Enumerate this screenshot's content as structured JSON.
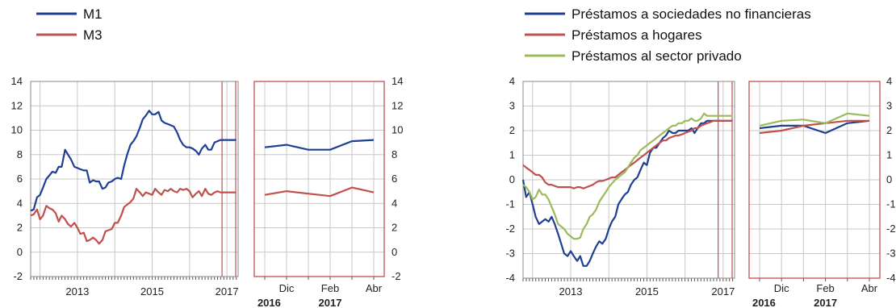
{
  "colors": {
    "m1": "#1f3f93",
    "m3": "#c0504d",
    "nfc": "#1f3f93",
    "households": "#c0504d",
    "private": "#9bbb59",
    "frame": "#c0504d",
    "grid": "#c8c8c8"
  },
  "chart_data": [
    {
      "type": "line",
      "title": "",
      "legend": [
        "M1",
        "M3"
      ],
      "legend_placement": "top-left",
      "ylim": [
        -2,
        14
      ],
      "yticks": [
        -2,
        0,
        2,
        4,
        6,
        8,
        10,
        12,
        14
      ],
      "main": {
        "x_range": [
          2011.75,
          2017.3
        ],
        "year_labels": [
          "2013",
          "2015",
          "2017"
        ],
        "highlight_x": [
          2016.87,
          2017.3
        ],
        "series": [
          {
            "name": "M1",
            "x": [
              2011.75,
              2011.83,
              2011.92,
              2012.0,
              2012.08,
              2012.17,
              2012.25,
              2012.33,
              2012.42,
              2012.5,
              2012.58,
              2012.67,
              2012.75,
              2012.83,
              2012.92,
              2013.0,
              2013.08,
              2013.17,
              2013.25,
              2013.33,
              2013.42,
              2013.5,
              2013.58,
              2013.67,
              2013.75,
              2013.83,
              2013.92,
              2014.0,
              2014.08,
              2014.17,
              2014.25,
              2014.33,
              2014.42,
              2014.5,
              2014.58,
              2014.67,
              2014.75,
              2014.83,
              2014.92,
              2015.0,
              2015.08,
              2015.17,
              2015.25,
              2015.33,
              2015.42,
              2015.5,
              2015.58,
              2015.67,
              2015.75,
              2015.83,
              2015.92,
              2016.0,
              2016.08,
              2016.17,
              2016.25,
              2016.33,
              2016.42,
              2016.5,
              2016.58,
              2016.67,
              2016.75,
              2016.83,
              2016.92,
              2017.0,
              2017.08,
              2017.17,
              2017.25
            ],
            "y": [
              3.4,
              3.5,
              4.5,
              4.7,
              5.3,
              6.0,
              6.3,
              6.6,
              6.5,
              7.0,
              7.0,
              8.4,
              8.0,
              7.6,
              7.0,
              6.9,
              6.8,
              6.7,
              6.7,
              5.7,
              5.9,
              5.8,
              5.8,
              5.2,
              5.3,
              5.7,
              5.8,
              6.0,
              6.1,
              6.0,
              7.1,
              8.0,
              8.8,
              9.1,
              9.5,
              10.2,
              10.9,
              11.2,
              11.6,
              11.3,
              11.3,
              11.5,
              10.8,
              10.6,
              10.5,
              10.4,
              10.3,
              9.8,
              9.2,
              8.8,
              8.6,
              8.6,
              8.5,
              8.3,
              8.0,
              8.5,
              8.8,
              8.4,
              8.4,
              9.0,
              9.1,
              9.2,
              9.2,
              9.2,
              9.2,
              9.2,
              9.2
            ]
          },
          {
            "name": "M3",
            "x": [
              2011.75,
              2011.83,
              2011.92,
              2012.0,
              2012.08,
              2012.17,
              2012.25,
              2012.33,
              2012.42,
              2012.5,
              2012.58,
              2012.67,
              2012.75,
              2012.83,
              2012.92,
              2013.0,
              2013.08,
              2013.17,
              2013.25,
              2013.33,
              2013.42,
              2013.5,
              2013.58,
              2013.67,
              2013.75,
              2013.83,
              2013.92,
              2014.0,
              2014.08,
              2014.17,
              2014.25,
              2014.33,
              2014.42,
              2014.5,
              2014.58,
              2014.67,
              2014.75,
              2014.83,
              2014.92,
              2015.0,
              2015.08,
              2015.17,
              2015.25,
              2015.33,
              2015.42,
              2015.5,
              2015.58,
              2015.67,
              2015.75,
              2015.83,
              2015.92,
              2016.0,
              2016.08,
              2016.17,
              2016.25,
              2016.33,
              2016.42,
              2016.5,
              2016.58,
              2016.67,
              2016.75,
              2016.83,
              2016.92,
              2017.0,
              2017.08,
              2017.17,
              2017.25
            ],
            "y": [
              3.0,
              3.1,
              3.5,
              2.7,
              3.0,
              3.8,
              3.6,
              3.5,
              3.2,
              2.5,
              3.0,
              2.7,
              2.3,
              2.1,
              2.4,
              2.0,
              1.5,
              1.6,
              0.9,
              1.0,
              1.2,
              1.0,
              0.7,
              1.0,
              1.7,
              1.8,
              1.9,
              2.4,
              2.4,
              3.0,
              3.7,
              3.9,
              4.1,
              4.4,
              5.2,
              4.9,
              4.6,
              4.9,
              4.8,
              4.7,
              5.2,
              4.9,
              4.7,
              5.1,
              5.0,
              5.2,
              5.0,
              4.9,
              5.2,
              5.1,
              5.2,
              5.0,
              4.5,
              4.8,
              5.0,
              4.6,
              5.2,
              4.8,
              4.7,
              4.9,
              5.0,
              4.9,
              4.9,
              4.9,
              4.9,
              4.9,
              4.9
            ]
          }
        ]
      },
      "inset": {
        "x_labels": [
          "Dic",
          "Feb",
          "Abr"
        ],
        "year_labels": [
          "2016",
          "2017"
        ],
        "series": [
          {
            "name": "M1",
            "values": [
              8.6,
              8.8,
              8.4,
              8.4,
              9.1,
              9.2
            ]
          },
          {
            "name": "M3",
            "values": [
              4.7,
              5.0,
              4.8,
              4.6,
              5.3,
              4.9
            ]
          }
        ]
      }
    },
    {
      "type": "line",
      "title": "",
      "legend": [
        "Préstamos a sociedades no financieras",
        "Préstamos a hogares",
        "Préstamos al sector privado"
      ],
      "legend_placement": "top-left",
      "ylim": [
        -4,
        4
      ],
      "yticks": [
        -4,
        -3,
        -2,
        -1,
        0,
        1,
        2,
        3,
        4
      ],
      "main": {
        "x_range": [
          2011.75,
          2017.3
        ],
        "year_labels": [
          "2013",
          "2015",
          "2017"
        ],
        "highlight_x": [
          2016.87,
          2017.3
        ],
        "series": [
          {
            "name": "Préstamos a sociedades no financieras",
            "x": [
              2011.75,
              2011.83,
              2011.92,
              2012.0,
              2012.08,
              2012.17,
              2012.25,
              2012.33,
              2012.42,
              2012.5,
              2012.58,
              2012.67,
              2012.75,
              2012.83,
              2012.92,
              2013.0,
              2013.08,
              2013.17,
              2013.25,
              2013.33,
              2013.42,
              2013.5,
              2013.58,
              2013.67,
              2013.75,
              2013.83,
              2013.92,
              2014.0,
              2014.08,
              2014.17,
              2014.25,
              2014.33,
              2014.42,
              2014.5,
              2014.58,
              2014.67,
              2014.75,
              2014.83,
              2014.92,
              2015.0,
              2015.08,
              2015.17,
              2015.25,
              2015.33,
              2015.42,
              2015.5,
              2015.58,
              2015.67,
              2015.75,
              2015.83,
              2015.92,
              2016.0,
              2016.08,
              2016.17,
              2016.25,
              2016.33,
              2016.42,
              2016.5,
              2016.58,
              2016.67,
              2016.75,
              2016.83,
              2016.92,
              2017.0,
              2017.08,
              2017.17,
              2017.25
            ],
            "y": [
              0.0,
              -0.7,
              -0.5,
              -1.0,
              -1.5,
              -1.8,
              -1.7,
              -1.6,
              -1.7,
              -1.5,
              -1.8,
              -2.2,
              -2.6,
              -3.0,
              -3.1,
              -2.9,
              -3.1,
              -3.3,
              -3.1,
              -3.5,
              -3.5,
              -3.3,
              -3.0,
              -2.7,
              -2.5,
              -2.6,
              -2.4,
              -2.0,
              -1.7,
              -1.5,
              -1.0,
              -0.8,
              -0.6,
              -0.5,
              -0.2,
              0.0,
              0.1,
              0.4,
              0.7,
              0.6,
              1.1,
              1.3,
              1.3,
              1.5,
              1.7,
              1.8,
              2.0,
              1.9,
              1.9,
              2.0,
              2.0,
              2.0,
              2.0,
              2.1,
              1.9,
              2.1,
              2.3,
              2.3,
              2.4,
              2.4,
              2.4,
              2.4,
              2.4,
              2.4,
              2.4,
              2.4,
              2.4
            ]
          },
          {
            "name": "Préstamos a hogares",
            "x": [
              2011.75,
              2011.83,
              2011.92,
              2012.0,
              2012.08,
              2012.17,
              2012.25,
              2012.33,
              2012.42,
              2012.5,
              2012.58,
              2012.67,
              2012.75,
              2012.83,
              2012.92,
              2013.0,
              2013.08,
              2013.17,
              2013.25,
              2013.33,
              2013.42,
              2013.5,
              2013.58,
              2013.67,
              2013.75,
              2013.83,
              2013.92,
              2014.0,
              2014.08,
              2014.17,
              2014.25,
              2014.33,
              2014.42,
              2014.5,
              2014.58,
              2014.67,
              2014.75,
              2014.83,
              2014.92,
              2015.0,
              2015.08,
              2015.17,
              2015.25,
              2015.33,
              2015.42,
              2015.5,
              2015.58,
              2015.67,
              2015.75,
              2015.83,
              2015.92,
              2016.0,
              2016.08,
              2016.17,
              2016.25,
              2016.33,
              2016.42,
              2016.5,
              2016.58,
              2016.67,
              2016.75,
              2016.83,
              2016.92,
              2017.0,
              2017.08,
              2017.17,
              2017.25
            ],
            "y": [
              0.6,
              0.5,
              0.4,
              0.3,
              0.2,
              0.2,
              0.1,
              -0.1,
              -0.2,
              -0.2,
              -0.25,
              -0.3,
              -0.3,
              -0.3,
              -0.3,
              -0.3,
              -0.35,
              -0.3,
              -0.3,
              -0.35,
              -0.3,
              -0.25,
              -0.2,
              -0.1,
              -0.05,
              -0.05,
              0.0,
              0.05,
              0.1,
              0.1,
              0.2,
              0.3,
              0.4,
              0.5,
              0.6,
              0.7,
              0.8,
              0.9,
              1.0,
              1.1,
              1.2,
              1.3,
              1.4,
              1.5,
              1.6,
              1.6,
              1.7,
              1.75,
              1.8,
              1.8,
              1.85,
              1.9,
              1.95,
              2.0,
              2.1,
              2.1,
              2.2,
              2.25,
              2.3,
              2.35,
              2.4,
              2.4,
              2.4,
              2.4,
              2.4,
              2.4,
              2.4
            ]
          },
          {
            "name": "Préstamos al sector privado",
            "x": [
              2011.75,
              2011.83,
              2011.92,
              2012.0,
              2012.08,
              2012.17,
              2012.25,
              2012.33,
              2012.42,
              2012.5,
              2012.58,
              2012.67,
              2012.75,
              2012.83,
              2012.92,
              2013.0,
              2013.08,
              2013.17,
              2013.25,
              2013.33,
              2013.42,
              2013.5,
              2013.58,
              2013.67,
              2013.75,
              2013.83,
              2013.92,
              2014.0,
              2014.08,
              2014.17,
              2014.25,
              2014.33,
              2014.42,
              2014.5,
              2014.58,
              2014.67,
              2014.75,
              2014.83,
              2014.92,
              2015.0,
              2015.08,
              2015.17,
              2015.25,
              2015.33,
              2015.42,
              2015.5,
              2015.58,
              2015.67,
              2015.75,
              2015.83,
              2015.92,
              2016.0,
              2016.08,
              2016.17,
              2016.25,
              2016.33,
              2016.42,
              2016.5,
              2016.58,
              2016.67,
              2016.75,
              2016.83,
              2016.92,
              2017.0,
              2017.08,
              2017.17,
              2017.25
            ],
            "y": [
              -0.2,
              -0.3,
              -0.5,
              -0.8,
              -0.7,
              -0.4,
              -0.6,
              -0.6,
              -0.8,
              -1.1,
              -1.4,
              -1.8,
              -1.9,
              -2.0,
              -2.2,
              -2.3,
              -2.4,
              -2.4,
              -2.35,
              -2.0,
              -1.8,
              -1.5,
              -1.4,
              -1.2,
              -0.9,
              -0.7,
              -0.5,
              -0.3,
              -0.15,
              0.0,
              0.1,
              0.2,
              0.3,
              0.5,
              0.7,
              0.9,
              1.0,
              1.2,
              1.3,
              1.4,
              1.5,
              1.6,
              1.7,
              1.8,
              1.9,
              2.0,
              2.1,
              2.2,
              2.2,
              2.3,
              2.3,
              2.4,
              2.4,
              2.5,
              2.4,
              2.4,
              2.5,
              2.7,
              2.6,
              2.6,
              2.6,
              2.6,
              2.6,
              2.6,
              2.6,
              2.6,
              2.6
            ]
          }
        ]
      },
      "inset": {
        "x_labels": [
          "Dic",
          "Feb",
          "Abr"
        ],
        "year_labels": [
          "2016",
          "2017"
        ],
        "series": [
          {
            "name": "Préstamos a sociedades no financieras",
            "values": [
              2.1,
              2.2,
              2.2,
              1.9,
              2.3,
              2.4
            ]
          },
          {
            "name": "Préstamos a hogares",
            "values": [
              1.9,
              2.0,
              2.2,
              2.3,
              2.4,
              2.4
            ]
          },
          {
            "name": "Préstamos al sector privado",
            "values": [
              2.2,
              2.4,
              2.45,
              2.3,
              2.7,
              2.6
            ]
          }
        ]
      }
    }
  ]
}
